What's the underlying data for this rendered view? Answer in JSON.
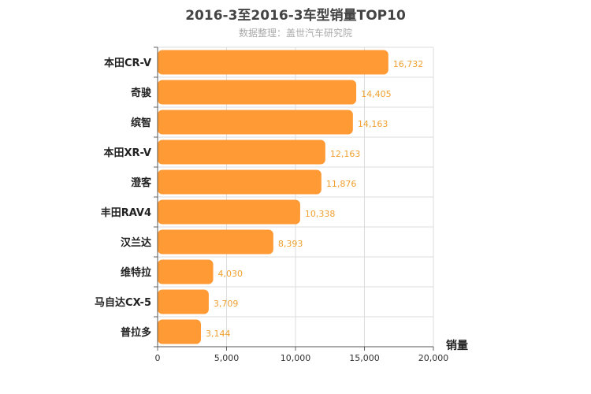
{
  "chart_data": {
    "type": "bar",
    "orientation": "horizontal",
    "title": "2016-3至2016-3车型销量TOP10",
    "subtitle": "数据整理：盖世汽车研究院",
    "categories": [
      "本田CR-V",
      "奇骏",
      "缤智",
      "本田XR-V",
      "澄客",
      "丰田RAV4",
      "汉兰达",
      "维特拉",
      "马自达CX-5",
      "普拉多"
    ],
    "values": [
      16732,
      14405,
      14163,
      12163,
      11876,
      10338,
      8393,
      4030,
      3709,
      3144
    ],
    "value_labels": [
      "16,732",
      "14,405",
      "14,163",
      "12,163",
      "11,876",
      "10,338",
      "8,393",
      "4,030",
      "3,709",
      "3,144"
    ],
    "xlabel": "销量",
    "ylabel": "",
    "xlim": [
      0,
      20000
    ],
    "ticks": [
      0,
      5000,
      10000,
      15000,
      20000
    ],
    "tick_labels": [
      "0",
      "5,000",
      "10,000",
      "15,000",
      "20,000"
    ],
    "grid": true,
    "bar_color": "#ff9a35"
  }
}
